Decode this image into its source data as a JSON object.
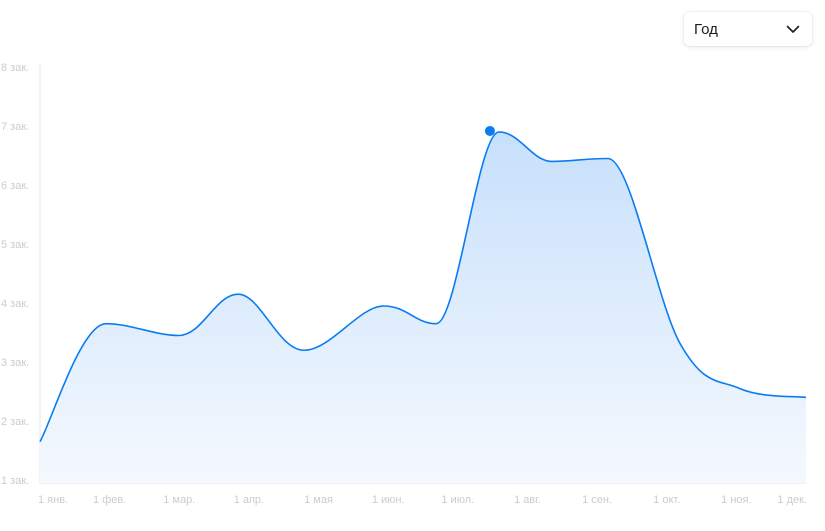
{
  "period_select": {
    "value": "Год"
  },
  "chart_data": {
    "type": "area",
    "title": "",
    "xlabel": "",
    "ylabel": "",
    "x": [
      "1 янв.",
      "1 фев.",
      "1 мар.",
      "1 апр.",
      "1 мая",
      "1 июн.",
      "1 июл.",
      "1 авг.",
      "1 сен.",
      "1 окт.",
      "1 ноя.",
      "1 дек."
    ],
    "x_values": [
      0,
      1.0,
      2.1,
      3.0,
      4.0,
      5.2,
      6.0,
      6.95,
      7.75,
      8.6,
      9.7,
      10.6,
      11.6
    ],
    "y_ticks": [
      "1 зак.",
      "2 зак.",
      "3 зак.",
      "4 зак.",
      "5 зак.",
      "6 зак.",
      "7 зак.",
      "8 зак."
    ],
    "ylim": [
      1,
      8
    ],
    "series": [
      {
        "values": [
          1.7,
          3.7,
          3.5,
          4.2,
          3.25,
          4.0,
          3.7,
          6.95,
          6.45,
          6.5,
          3.35,
          2.6,
          2.45
        ]
      }
    ],
    "highlight": {
      "index": 7,
      "value": 6.95
    },
    "grid": false,
    "colors": {
      "line": "#0a7cf0",
      "fill_top": "#c7e0fb",
      "fill_bottom": "#f5f9fe",
      "axis": "#e3e5e8",
      "ticks": "#c9ccd1"
    }
  }
}
